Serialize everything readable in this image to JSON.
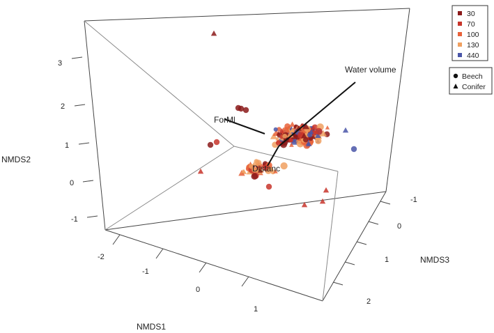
{
  "chart_data": {
    "type": "scatter",
    "axes": {
      "x": {
        "label": "NMDS1",
        "ticks": [
          "-2",
          "-1",
          "0",
          "1"
        ]
      },
      "y": {
        "label": "NMDS2",
        "ticks": [
          "-1",
          "0",
          "1",
          "2",
          "3"
        ]
      },
      "z": {
        "label": "NMDS3",
        "ticks": [
          "-1",
          "0",
          "1",
          "2"
        ]
      }
    },
    "legend_color": {
      "placement": "top-right",
      "entries": [
        {
          "label": "30",
          "color": "#8b1a1a"
        },
        {
          "label": "70",
          "color": "#c8352b"
        },
        {
          "label": "100",
          "color": "#e8623a"
        },
        {
          "label": "130",
          "color": "#f0a060"
        },
        {
          "label": "440",
          "color": "#4a56a8"
        }
      ]
    },
    "legend_shape": {
      "placement": "right",
      "entries": [
        {
          "label": "Beech",
          "shape": "circle"
        },
        {
          "label": "Conifer",
          "shape": "triangle"
        }
      ]
    },
    "vectors": [
      {
        "label": "Water volume"
      },
      {
        "label": "ForMl"
      },
      {
        "label": "Distanc"
      }
    ],
    "points_note": "approx. 300 sample points clustered near origin; values estimated",
    "series": [
      {
        "group": "30",
        "color": "#8b1a1a"
      },
      {
        "group": "70",
        "color": "#c8352b"
      },
      {
        "group": "100",
        "color": "#e8623a"
      },
      {
        "group": "130",
        "color": "#f0a060"
      },
      {
        "group": "440",
        "color": "#4a56a8"
      }
    ]
  }
}
